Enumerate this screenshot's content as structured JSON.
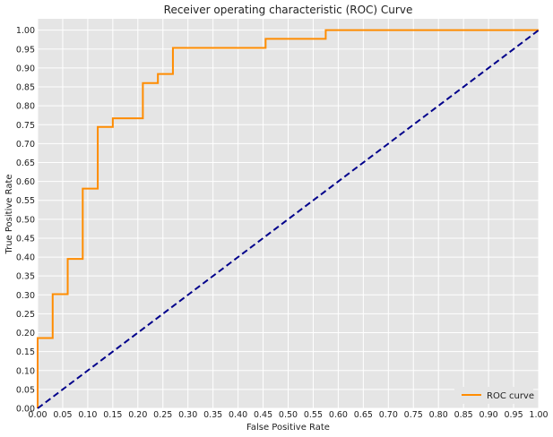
{
  "chart_data": {
    "type": "line",
    "title": "Receiver operating characteristic (ROC) Curve",
    "xlabel": "False Positive Rate",
    "ylabel": "True Positive Rate",
    "xlim": [
      0,
      1
    ],
    "ylim": [
      0,
      1.03
    ],
    "xticks": [
      "0.00",
      "0.05",
      "0.10",
      "0.15",
      "0.20",
      "0.25",
      "0.30",
      "0.35",
      "0.40",
      "0.45",
      "0.50",
      "0.55",
      "0.60",
      "0.65",
      "0.70",
      "0.75",
      "0.80",
      "0.85",
      "0.90",
      "0.95",
      "1.00"
    ],
    "yticks": [
      "0.00",
      "0.05",
      "0.10",
      "0.15",
      "0.20",
      "0.25",
      "0.30",
      "0.35",
      "0.40",
      "0.45",
      "0.50",
      "0.55",
      "0.60",
      "0.65",
      "0.70",
      "0.75",
      "0.80",
      "0.85",
      "0.90",
      "0.95",
      "1.00"
    ],
    "grid": true,
    "legend_position": "lower right",
    "series": [
      {
        "name": "ROC curve",
        "color": "#ff8c00",
        "style": "solid",
        "step": true,
        "x": [
          0.0,
          0.0,
          0.03,
          0.03,
          0.06,
          0.06,
          0.09,
          0.09,
          0.12,
          0.12,
          0.15,
          0.15,
          0.21,
          0.21,
          0.24,
          0.24,
          0.27,
          0.27,
          0.455,
          0.455,
          0.575,
          0.575,
          1.0
        ],
        "y": [
          0.0,
          0.186,
          0.186,
          0.302,
          0.302,
          0.395,
          0.395,
          0.581,
          0.581,
          0.744,
          0.744,
          0.767,
          0.767,
          0.86,
          0.86,
          0.884,
          0.884,
          0.953,
          0.953,
          0.977,
          0.977,
          1.0,
          1.0
        ]
      },
      {
        "name": "",
        "color": "#00008b",
        "style": "dashed",
        "step": false,
        "x": [
          0,
          1
        ],
        "y": [
          0,
          1
        ]
      }
    ],
    "colors": {
      "background": "#e5e5e5",
      "grid": "#ffffff"
    }
  }
}
